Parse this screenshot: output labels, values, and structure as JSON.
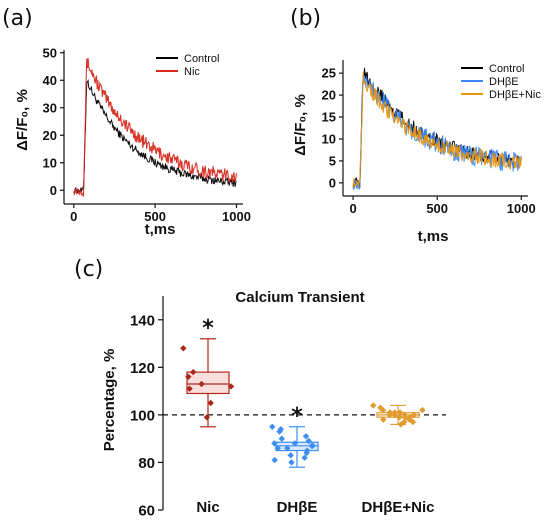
{
  "colors": {
    "control": "#000000",
    "nic": "#d62a1e",
    "nic_fill": "#f6b3c9",
    "dhbe": "#3a86ff",
    "dhbe_nic": "#e8960c",
    "box_nic_edge": "#b5261b",
    "box_nic_fill": "#f9dede",
    "box_nic_point": "#a8281c",
    "box_dhbe_edge": "#3b8ff0",
    "box_dhbe_fill": "#dbe9fc",
    "box_dhbe_point": "#3d8ef0",
    "box_dn_edge": "#e1a042",
    "box_dn_fill": "#fbefd8",
    "box_dn_point": "#e09a2e"
  },
  "panels": {
    "a": {
      "letter": "(a)"
    },
    "b": {
      "letter": "(b)"
    },
    "c": {
      "letter": "(c)"
    }
  },
  "chart_data": [
    {
      "id": "a",
      "type": "line",
      "title": "",
      "xlabel": "t,ms",
      "ylabel": "ΔF/F₀, %",
      "xlim": [
        -60,
        1040
      ],
      "ylim": [
        -5,
        51
      ],
      "xticks": [
        0,
        500,
        1000
      ],
      "yticks": [
        0,
        10,
        20,
        30,
        40,
        50
      ],
      "legend_position": "top-right",
      "series": [
        {
          "name": "Control",
          "color_key": "control",
          "baseline": 0,
          "peak": 40,
          "peak_time": 80,
          "rise_start": 60,
          "tau": 290,
          "end_value": 1,
          "noise": 1.5
        },
        {
          "name": "Nic",
          "color_key": "nic",
          "baseline": 0,
          "peak": 47,
          "peak_time": 80,
          "rise_start": 60,
          "tau": 330,
          "end_value": 2,
          "noise": 2.5
        }
      ]
    },
    {
      "id": "b",
      "type": "line",
      "title": "",
      "xlabel": "t,ms",
      "ylabel": "ΔF/F₀, %",
      "xlim": [
        -60,
        1040
      ],
      "ylim": [
        -3,
        28
      ],
      "xticks": [
        0,
        500,
        1000
      ],
      "yticks": [
        0,
        5,
        10,
        15,
        20,
        25
      ],
      "legend_position": "top-right",
      "series": [
        {
          "name": "Control",
          "color_key": "control",
          "baseline": 0,
          "peak": 26,
          "peak_time": 60,
          "rise_start": 40,
          "tau": 330,
          "end_value": 3.5,
          "noise": 1.6
        },
        {
          "name": "DHβE",
          "color_key": "dhbe",
          "baseline": 0,
          "peak": 25,
          "peak_time": 60,
          "rise_start": 40,
          "tau": 320,
          "end_value": 3.5,
          "noise": 2.4
        },
        {
          "name": "DHβE+Nic",
          "color_key": "dhbe_nic",
          "baseline": 0,
          "peak": 24,
          "peak_time": 60,
          "rise_start": 40,
          "tau": 320,
          "end_value": 3.5,
          "noise": 1.8
        }
      ]
    },
    {
      "id": "c",
      "type": "box",
      "title": "Calcium Transient",
      "xlabel": "",
      "ylabel": "Percentage, %",
      "ylim": [
        60,
        150
      ],
      "yticks": [
        60,
        80,
        100,
        120,
        140
      ],
      "reference_line": 100,
      "categories": [
        "Nic",
        "DHβE",
        "DHβE+Nic"
      ],
      "groups": [
        {
          "name": "Nic",
          "color_prefix": "box_nic",
          "q1": 109,
          "median": 113,
          "q3": 118,
          "mean": 113,
          "whisker_low": 95,
          "whisker_high": 132,
          "significant": true,
          "points": [
            128,
            118,
            116,
            113,
            112,
            111,
            105,
            99
          ]
        },
        {
          "name": "DHβE",
          "color_prefix": "box_dhbe",
          "q1": 85,
          "median": 87,
          "q3": 88.5,
          "mean": 86.5,
          "whisker_low": 78,
          "whisker_high": 95,
          "significant": true,
          "points": [
            95,
            94,
            93,
            91,
            90,
            89,
            88,
            88,
            87,
            87,
            86,
            86,
            85,
            84,
            83,
            82,
            81,
            80
          ]
        },
        {
          "name": "DHβE+Nic",
          "color_prefix": "box_dn",
          "q1": 99,
          "median": 100,
          "q3": 101,
          "mean": 100,
          "whisker_low": 96,
          "whisker_high": 104,
          "significant": false,
          "points": [
            104,
            103,
            102,
            102,
            101,
            101,
            101,
            100,
            100,
            100,
            100,
            99,
            99,
            99,
            98,
            98,
            97,
            97,
            96
          ]
        }
      ]
    }
  ]
}
